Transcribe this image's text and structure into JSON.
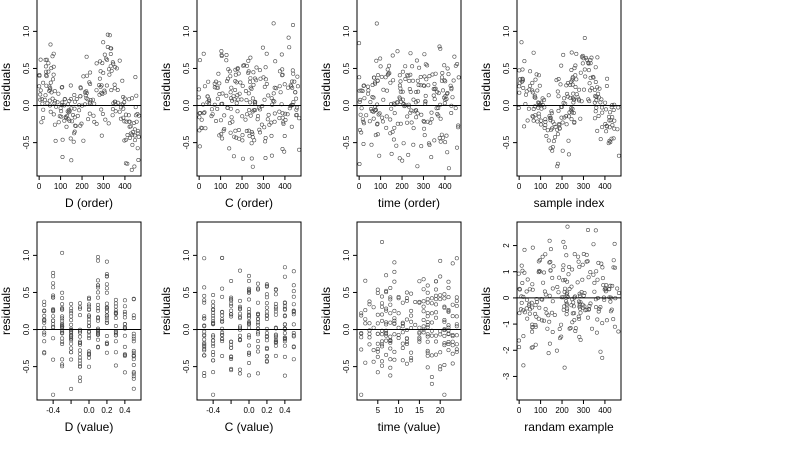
{
  "chart_data": [
    {
      "type": "scatter",
      "xlabel": "D (order)",
      "ylabel": "residuals",
      "xlim": [
        -10,
        475
      ],
      "ylim": [
        -0.95,
        1.45
      ],
      "xticks": [
        0,
        100,
        200,
        300,
        400
      ],
      "xtick_labels": [
        "0",
        "100",
        "200",
        "300",
        "400"
      ],
      "yticks": [
        -0.5,
        0,
        0.5,
        1
      ],
      "ytick_labels": [
        "-0.5",
        "0.0",
        "0.5",
        "1.0"
      ],
      "reference_line": 0,
      "grid": false,
      "legend": "none",
      "trend": {
        "x": [
          0,
          60,
          120,
          160,
          200,
          240,
          280,
          320,
          360,
          400,
          440,
          465
        ],
        "y": [
          0.25,
          0.3,
          -0.15,
          -0.3,
          0.05,
          0.1,
          0.15,
          0.55,
          0.2,
          -0.2,
          -0.3,
          -0.4
        ]
      },
      "noise": 0.26,
      "n_points": 230
    },
    {
      "type": "scatter",
      "xlabel": "C (order)",
      "ylabel": "residuals",
      "xlim": [
        -10,
        475
      ],
      "ylim": [
        -0.95,
        1.45
      ],
      "xticks": [
        0,
        100,
        200,
        300,
        400
      ],
      "xtick_labels": [
        "0",
        "100",
        "200",
        "300",
        "400"
      ],
      "yticks": [
        -0.5,
        0,
        0.5,
        1
      ],
      "ytick_labels": [
        "-0.5",
        "0.0",
        "0.5",
        "1.0"
      ],
      "reference_line": 0,
      "grid": false,
      "legend": "none",
      "trend": {
        "x": [
          0,
          465
        ],
        "y": [
          0.05,
          0.05
        ]
      },
      "noise": 0.34,
      "n_points": 230
    },
    {
      "type": "scatter",
      "xlabel": "time (order)",
      "ylabel": "residuals",
      "xlim": [
        -10,
        475
      ],
      "ylim": [
        -0.95,
        1.45
      ],
      "xticks": [
        0,
        100,
        200,
        300,
        400
      ],
      "xtick_labels": [
        "0",
        "100",
        "200",
        "300",
        "400"
      ],
      "yticks": [
        -0.5,
        0,
        0.5,
        1
      ],
      "ytick_labels": [
        "-0.5",
        "0.0",
        "0.5",
        "1.0"
      ],
      "reference_line": 0,
      "grid": false,
      "legend": "none",
      "trend": {
        "x": [
          0,
          465
        ],
        "y": [
          0.05,
          0.05
        ]
      },
      "noise": 0.34,
      "n_points": 230
    },
    {
      "type": "scatter",
      "xlabel": "sample index",
      "ylabel": "residuals",
      "xlim": [
        -10,
        475
      ],
      "ylim": [
        -0.95,
        1.45
      ],
      "xticks": [
        0,
        100,
        200,
        300,
        400
      ],
      "xtick_labels": [
        "0",
        "100",
        "200",
        "300",
        "400"
      ],
      "yticks": [
        -0.5,
        0,
        0.5,
        1
      ],
      "ytick_labels": [
        "-0.5",
        "0.0",
        "0.5",
        "1.0"
      ],
      "reference_line": 0,
      "grid": false,
      "legend": "none",
      "trend": {
        "x": [
          0,
          60,
          120,
          160,
          200,
          240,
          280,
          320,
          360,
          400,
          440,
          465
        ],
        "y": [
          0.2,
          0.25,
          -0.2,
          -0.35,
          0.0,
          0.1,
          0.2,
          0.6,
          0.15,
          -0.25,
          -0.3,
          -0.1
        ]
      },
      "noise": 0.24,
      "n_points": 230
    },
    {
      "type": "scatter",
      "xlabel": "D (value)",
      "ylabel": "residuals",
      "xlim": [
        -0.58,
        0.58
      ],
      "ylim": [
        -0.95,
        1.45
      ],
      "xticks": [
        -0.4,
        -0.2,
        0.0,
        0.2,
        0.4
      ],
      "xtick_labels": [
        "-0.4",
        "0.0",
        "0.2",
        "0.4"
      ],
      "xtick_label_values": [
        -0.4,
        0.0,
        0.2,
        0.4
      ],
      "yticks": [
        -0.5,
        0,
        0.5,
        1
      ],
      "ytick_labels": [
        "-0.5",
        "0.0",
        "0.5",
        "1.0"
      ],
      "reference_line": 0,
      "grid": false,
      "legend": "none",
      "discrete_x": [
        -0.5,
        -0.4,
        -0.3,
        -0.2,
        -0.1,
        0.0,
        0.1,
        0.2,
        0.3,
        0.4,
        0.5
      ],
      "trend": {
        "x": [
          -0.5,
          -0.3,
          -0.1,
          0.0,
          0.15,
          0.3,
          0.5
        ],
        "y": [
          0.1,
          0.2,
          -0.2,
          -0.05,
          0.5,
          0.05,
          -0.2
        ]
      },
      "noise": 0.28,
      "n_points": 230
    },
    {
      "type": "scatter",
      "xlabel": "C (value)",
      "ylabel": "residuals",
      "xlim": [
        -0.58,
        0.58
      ],
      "ylim": [
        -0.95,
        1.45
      ],
      "xticks": [
        -0.4,
        -0.2,
        0.0,
        0.2,
        0.4
      ],
      "xtick_labels": [
        "-0.4",
        "0.0",
        "0.2",
        "0.4"
      ],
      "xtick_label_values": [
        -0.4,
        0.0,
        0.2,
        0.4
      ],
      "yticks": [
        -0.5,
        0,
        0.5,
        1
      ],
      "ytick_labels": [
        "-0.5",
        "0.0",
        "0.5",
        "1.0"
      ],
      "reference_line": 0,
      "grid": false,
      "legend": "none",
      "discrete_x": [
        -0.5,
        -0.4,
        -0.3,
        -0.2,
        -0.1,
        0.0,
        0.1,
        0.2,
        0.3,
        0.4,
        0.5
      ],
      "trend": {
        "x": [
          -0.5,
          0.5
        ],
        "y": [
          0.05,
          0.05
        ]
      },
      "noise": 0.34,
      "n_points": 230
    },
    {
      "type": "scatter",
      "xlabel": "time (value)",
      "ylabel": "residuals",
      "xlim": [
        0,
        25
      ],
      "ylim": [
        -0.95,
        1.45
      ],
      "xticks": [
        5,
        10,
        15,
        20
      ],
      "xtick_labels": [
        "5",
        "10",
        "15",
        "20"
      ],
      "yticks": [
        -0.5,
        0,
        0.5,
        1
      ],
      "ytick_labels": [
        "-0.5",
        "0.0",
        "0.5",
        "1.0"
      ],
      "reference_line": 0,
      "grid": false,
      "legend": "none",
      "discrete_x": [
        1,
        2,
        3,
        4,
        5,
        6,
        7,
        8,
        9,
        10,
        11,
        12,
        13,
        14,
        15,
        16,
        17,
        18,
        19,
        20,
        21,
        22,
        23,
        24
      ],
      "trend": {
        "x": [
          1,
          24
        ],
        "y": [
          0.05,
          0.05
        ]
      },
      "noise": 0.34,
      "n_points": 230
    },
    {
      "type": "scatter",
      "xlabel": "randam example",
      "ylabel": "residuals",
      "xlim": [
        -10,
        475
      ],
      "ylim": [
        -3.9,
        2.9
      ],
      "xticks": [
        0,
        100,
        200,
        300,
        400
      ],
      "xtick_labels": [
        "0",
        "100",
        "200",
        "300",
        "400"
      ],
      "yticks": [
        -3,
        -2,
        -1,
        0,
        1,
        2
      ],
      "ytick_labels": [
        "-3",
        "-2",
        "-1",
        "0",
        "1",
        "2"
      ],
      "reference_line": 0,
      "grid": false,
      "legend": "none",
      "trend": {
        "x": [
          0,
          465
        ],
        "y": [
          0.15,
          0.15
        ]
      },
      "noise": 1.0,
      "n_points": 230
    }
  ]
}
